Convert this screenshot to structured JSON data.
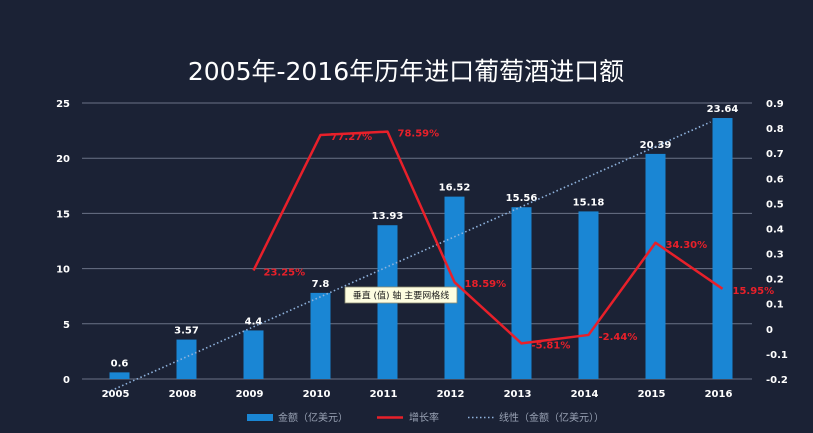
{
  "chart_data": {
    "type": "bar",
    "title": "2005年-2016年历年进口葡萄酒进口额",
    "categories": [
      "2005",
      "2008",
      "2009",
      "2010",
      "2011",
      "2012",
      "2013",
      "2014",
      "2015",
      "2016"
    ],
    "series": [
      {
        "name": "金额（亿美元）",
        "kind": "bar",
        "axis": "left",
        "color": "#1a86d4",
        "values": [
          0.6,
          3.57,
          4.4,
          7.8,
          13.93,
          16.52,
          15.56,
          15.18,
          20.39,
          23.64
        ],
        "labels": [
          "0.6",
          "3.57",
          "4.4",
          "7.8",
          "13.93",
          "16.52",
          "15.56",
          "15.18",
          "20.39",
          "23.64"
        ]
      },
      {
        "name": "增长率",
        "kind": "line",
        "axis": "right",
        "color": "#e8202a",
        "values": [
          null,
          null,
          0.2325,
          0.7727,
          0.7859,
          0.1859,
          -0.0581,
          -0.0244,
          0.343,
          0.1595
        ],
        "labels": [
          "",
          "",
          "23.25%",
          "77.27%",
          "78.59%",
          "18.59%",
          "-5.81%",
          "-2.44%",
          "34.30%",
          "15.95%"
        ]
      },
      {
        "name": "线性（金额（亿美元））",
        "kind": "trendline",
        "axis": "left",
        "color": "#8fb3dd",
        "values": [
          -1.2,
          1.52,
          4.24,
          6.96,
          9.68,
          12.4,
          15.12,
          17.84,
          20.56,
          23.28
        ]
      }
    ],
    "y_left": {
      "min": 0,
      "max": 25,
      "ticks": [
        0,
        5,
        10,
        15,
        20,
        25
      ]
    },
    "y_right": {
      "min": -0.2,
      "max": 0.9,
      "ticks": [
        -0.2,
        -0.1,
        0,
        0.1,
        0.2,
        0.3,
        0.4,
        0.5,
        0.6,
        0.7,
        0.8,
        0.9
      ],
      "tick_labels": [
        "-0.2",
        "-0.1",
        "0",
        "0.1",
        "0.2",
        "0.3",
        "0.4",
        "0.5",
        "0.6",
        "0.7",
        "0.8",
        "0.9"
      ]
    },
    "grid": true,
    "legend": "bottom",
    "tooltip": "垂直 (值) 轴 主要网格线"
  }
}
